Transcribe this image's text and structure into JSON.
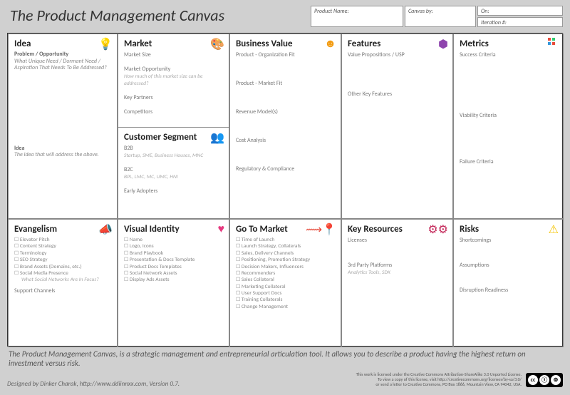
{
  "title": "The Product Management Canvas",
  "meta": {
    "product_name_label": "Product Name:",
    "canvas_by_label": "Canvas by:",
    "on_label": "On:",
    "iteration_label": "Iteration #:"
  },
  "cells": {
    "idea": {
      "title": "Idea",
      "icon_color": "#1aa7c7",
      "problem_label": "Problem / Opportunity",
      "problem_desc": "What Unique Need / Dormant Need / Aspiration That Needs To Be Addressed?",
      "idea_label": "Idea",
      "idea_desc": "The idea that will address the above."
    },
    "market": {
      "title": "Market",
      "items": [
        "Market Size",
        "Market Opportunity",
        "Key Partners",
        "Competitors"
      ],
      "opp_desc": "How much of this market size can be addressed?"
    },
    "customer": {
      "title": "Customer Segment",
      "b2b_label": "B2B",
      "b2b_desc": "Startup, SME, Business Houses, MNC",
      "b2c_label": "B2C",
      "b2c_desc": "BPL, LMC, MC, UMC, HNI",
      "early": "Early Adopters"
    },
    "bizval": {
      "title": "Business Value",
      "icon_color": "#f39c12",
      "items": [
        "Product - Organization Fit",
        "Product - Market Fit",
        "Revenue  Model(s)",
        "Cost Analysis",
        "Regulatory & Compliance"
      ]
    },
    "features": {
      "title": "Features",
      "icon_color": "#8e44ad",
      "items": [
        "Value Propositions / USP",
        "Other Key Features"
      ]
    },
    "metrics": {
      "title": "Metrics",
      "items": [
        "Success Criteria",
        "Viability Criteria",
        "Failure Criteria"
      ]
    },
    "evangelism": {
      "title": "Evangelism",
      "icon_color": "#d8127d",
      "items": [
        "Elevator Pitch",
        "Content Strategy",
        "Terminology",
        "SEO Strategy",
        "Brand Assets (Domains, etc.)",
        "Social Media Presence"
      ],
      "social_desc": "What Social Networks Are In Focus?",
      "support": "Support Channels"
    },
    "visual": {
      "title": "Visual Identity",
      "icon_color": "#e6397f",
      "items": [
        "Name",
        "Logo, Icons",
        "Brand Playbook",
        "Presentation & Docs Template",
        "Product Docs Templates",
        "Social Network Assets",
        "Display Ads Assets"
      ]
    },
    "gtm": {
      "title": "Go To Market",
      "icon_color": "#e74c3c",
      "items": [
        "Time of Launch",
        "Launch Strategy, Collaterals",
        "Sales, Delivery Channels",
        "Positioning, Promotion Strategy",
        "Decision Makers, Influencers",
        "Recommenders",
        "Sales Collateral",
        "Marketing Collateral",
        "User Support Docs",
        "Training Collaterals",
        "Change Management"
      ]
    },
    "keyres": {
      "title": "Key Resources",
      "icon_color": "#c22456",
      "lic": "Licenses",
      "tp_label": "3rd Party Platforms",
      "tp_desc": "Analytics Tools, SDK"
    },
    "risks": {
      "title": "Risks",
      "icon_color": "#f5c60a",
      "items": [
        "Shortcomings",
        "Assumptions",
        "Disruption Readiness"
      ]
    }
  },
  "footer_text": "The Product Management Canvas, is a strategic management and entrepreneurial articulation tool. It allows you to describe a product having the highest return on investment versus risk.",
  "designed_by": "Designed by Dinker Charak, http://www.ddiinnxx.com, Version 0.7.",
  "license": {
    "l1": "This work is licensed under the Creative Commons Attribution-ShareAlike 3.0 Unported License.",
    "l2": "To view a copy of this license, visit http://creativecommons.org/licenses/by-sa/3.0/",
    "l3": "or send a letter to Creative Commons, PO Box 1866, Mountain View, CA 94042, USA."
  }
}
